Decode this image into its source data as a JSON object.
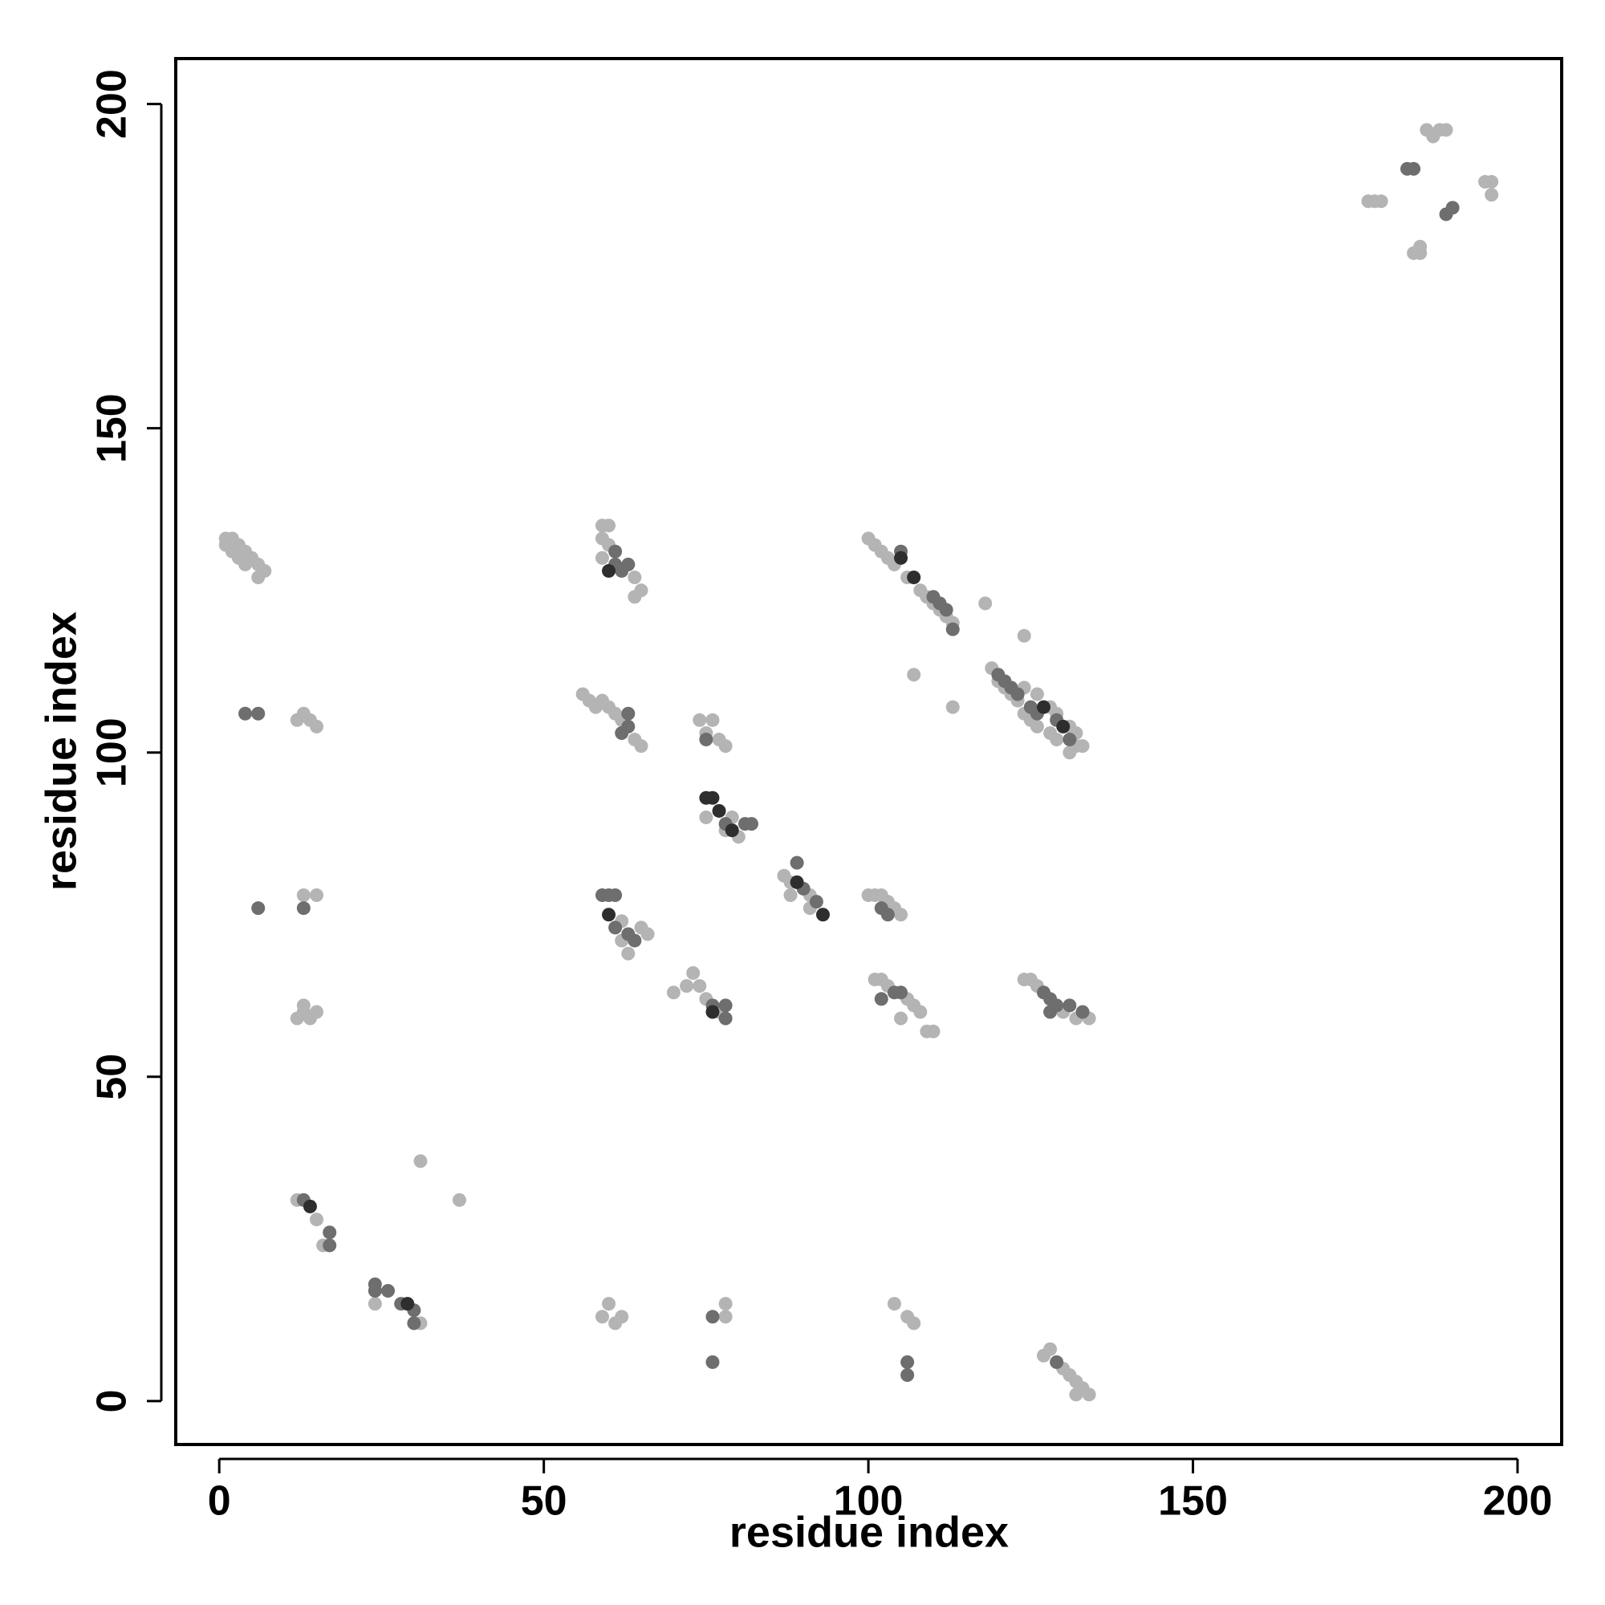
{
  "chart_data": {
    "type": "scatter",
    "xlabel": "residue index",
    "ylabel": "residue index",
    "xlim": [
      -6.7,
      206.8
    ],
    "ylim": [
      -6.7,
      207
    ],
    "xticks": [
      0,
      50,
      100,
      150,
      200
    ],
    "yticks": [
      0,
      50,
      100,
      150,
      200
    ],
    "series": [
      {
        "color": "#b4b4b4",
        "x": [
          1,
          2,
          3,
          4,
          5,
          6,
          7,
          1,
          2,
          3,
          4,
          6,
          13,
          14,
          15,
          12,
          13,
          15,
          13,
          12,
          14,
          15,
          13,
          12,
          15,
          16,
          24,
          31,
          31,
          37,
          59,
          60,
          59,
          60,
          64,
          65,
          64,
          59,
          56,
          57,
          58,
          59,
          60,
          61,
          62,
          64,
          65,
          74,
          76,
          75,
          77,
          78,
          75,
          79,
          80,
          78,
          87,
          88,
          91,
          88,
          91,
          62,
          65,
          66,
          63,
          62,
          70,
          72,
          73,
          74,
          75,
          77,
          100,
          101,
          102,
          103,
          104,
          105,
          101,
          102,
          103,
          106,
          107,
          108,
          109,
          110,
          105,
          124,
          125,
          126,
          130,
          132,
          134,
          100,
          101,
          102,
          103,
          104,
          106,
          108,
          109,
          110,
          111,
          112,
          113,
          118,
          107,
          113,
          124,
          119,
          120,
          121,
          122,
          123,
          124,
          125,
          126,
          128,
          129,
          131,
          132,
          133,
          124,
          126,
          128,
          129,
          131,
          132,
          59,
          60,
          61,
          62,
          78,
          78,
          104,
          106,
          107,
          127,
          128,
          130,
          131,
          132,
          133,
          134,
          132,
          177,
          178,
          179,
          186,
          187,
          188,
          189,
          185,
          184,
          185,
          195,
          196,
          196
        ],
        "values": [
          133,
          133,
          132,
          131,
          130,
          129,
          128,
          132,
          131,
          130,
          129,
          127,
          106,
          105,
          104,
          105,
          78,
          78,
          61,
          59,
          59,
          60,
          60,
          31,
          28,
          24,
          15,
          12,
          37,
          31,
          135,
          135,
          133,
          132,
          127,
          125,
          124,
          130,
          109,
          108,
          107,
          108,
          107,
          106,
          105,
          102,
          101,
          105,
          105,
          103,
          102,
          101,
          90,
          90,
          87,
          88,
          81,
          80,
          78,
          78,
          76,
          74,
          73,
          72,
          69,
          71,
          63,
          64,
          66,
          64,
          62,
          60,
          78,
          78,
          78,
          77,
          76,
          75,
          65,
          65,
          64,
          62,
          61,
          60,
          57,
          57,
          59,
          65,
          65,
          64,
          60,
          59,
          59,
          133,
          132,
          131,
          130,
          129,
          127,
          125,
          124,
          123,
          122,
          121,
          120,
          123,
          112,
          107,
          118,
          113,
          111,
          110,
          109,
          108,
          106,
          105,
          104,
          103,
          102,
          100,
          101,
          101,
          110,
          109,
          107,
          106,
          104,
          103,
          13,
          15,
          12,
          13,
          15,
          13,
          15,
          13,
          12,
          7,
          8,
          5,
          4,
          3,
          2,
          1,
          1,
          185,
          185,
          185,
          196,
          195,
          196,
          196,
          178,
          177,
          177,
          188,
          188,
          186
        ]
      },
      {
        "color": "#6e6e6e",
        "x": [
          4,
          6,
          6,
          13,
          13,
          17,
          17,
          24,
          24,
          26,
          28,
          30,
          30,
          61,
          61,
          62,
          63,
          63,
          62,
          63,
          75,
          78,
          81,
          82,
          89,
          90,
          92,
          59,
          60,
          61,
          61,
          63,
          64,
          76,
          78,
          78,
          102,
          103,
          102,
          104,
          105,
          127,
          128,
          129,
          131,
          133,
          128,
          105,
          110,
          111,
          112,
          113,
          120,
          121,
          122,
          123,
          125,
          126,
          129,
          131,
          76,
          76,
          106,
          106,
          129,
          183,
          184,
          189,
          190
        ],
        "values": [
          106,
          106,
          76,
          76,
          31,
          26,
          24,
          18,
          17,
          17,
          15,
          14,
          12,
          131,
          129,
          128,
          129,
          104,
          103,
          106,
          102,
          89,
          89,
          89,
          83,
          79,
          77,
          78,
          78,
          78,
          73,
          72,
          71,
          61,
          59,
          61,
          76,
          75,
          62,
          63,
          63,
          63,
          62,
          61,
          61,
          60,
          60,
          131,
          124,
          123,
          122,
          119,
          112,
          111,
          110,
          109,
          107,
          106,
          105,
          102,
          13,
          6,
          6,
          4,
          6,
          190,
          190,
          183,
          184
        ]
      },
      {
        "color": "#2e2e2e",
        "x": [
          14,
          29,
          60,
          75,
          76,
          77,
          79,
          89,
          93,
          60,
          76,
          105,
          107,
          127,
          130
        ],
        "values": [
          30,
          15,
          128,
          93,
          93,
          91,
          88,
          80,
          75,
          75,
          60,
          130,
          127,
          107,
          104
        ]
      }
    ]
  }
}
